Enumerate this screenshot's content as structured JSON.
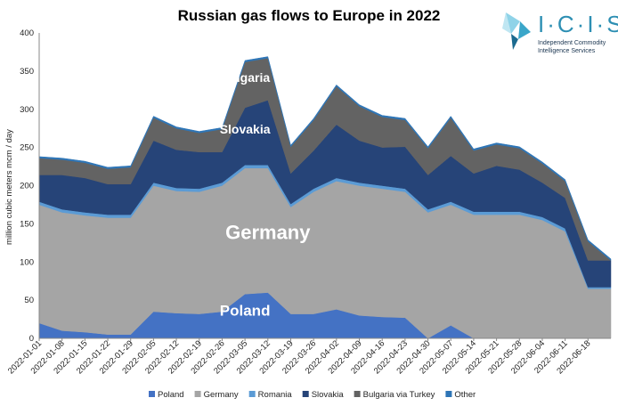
{
  "logo": {
    "name": "I·C·I·S",
    "line1": "Independent Commodity",
    "line2": "Intelligence Services"
  },
  "chart_data": {
    "type": "area",
    "stacked": true,
    "title": "Russian gas flows to Europe in 2022",
    "ylabel": "million cubic meters mcm / day",
    "xlabel": "",
    "ylim": [
      0,
      400
    ],
    "y_ticks": [
      0,
      50,
      100,
      150,
      200,
      250,
      300,
      350,
      400
    ],
    "x_tick_labels": [
      "2022-01-01",
      "2022-01-08",
      "2022-01-15",
      "2022-01-22",
      "2022-01-29",
      "2022-02-05",
      "2022-02-12",
      "2022-02-19",
      "2022-02-26",
      "2022-03-05",
      "2022-03-12",
      "2022-03-19",
      "2022-03-26",
      "2022-04-02",
      "2022-04-09",
      "2022-04-16",
      "2022-04-23",
      "2022-04-30",
      "2022-05-07",
      "2022-05-14",
      "2022-05-21",
      "2022-05-28",
      "2022-06-04",
      "2022-06-11",
      "2022-06-18"
    ],
    "x_start": "2022-01-01",
    "x_end": "2022-06-25",
    "grid": false,
    "legend_position": "bottom",
    "series_values_note": "values in mcm/day at weekly dates matching x_tick_labels plus end point",
    "dates": [
      "2022-01-01",
      "2022-01-08",
      "2022-01-15",
      "2022-01-22",
      "2022-01-29",
      "2022-02-05",
      "2022-02-12",
      "2022-02-19",
      "2022-02-26",
      "2022-03-05",
      "2022-03-12",
      "2022-03-19",
      "2022-03-26",
      "2022-04-02",
      "2022-04-09",
      "2022-04-16",
      "2022-04-23",
      "2022-04-30",
      "2022-05-07",
      "2022-05-14",
      "2022-05-21",
      "2022-05-28",
      "2022-06-04",
      "2022-06-11",
      "2022-06-18",
      "2022-06-25"
    ],
    "series": [
      {
        "name": "Poland",
        "color": "#4472c4",
        "values": [
          20,
          10,
          8,
          5,
          5,
          35,
          33,
          32,
          35,
          58,
          60,
          32,
          32,
          38,
          30,
          28,
          27,
          0,
          17,
          0,
          0,
          0,
          0,
          0,
          0,
          0
        ]
      },
      {
        "name": "Germany",
        "color": "#a5a5a5",
        "values": [
          155,
          155,
          153,
          153,
          153,
          165,
          160,
          160,
          165,
          165,
          163,
          140,
          160,
          168,
          170,
          168,
          165,
          165,
          158,
          162,
          162,
          162,
          155,
          140,
          65,
          65
        ]
      },
      {
        "name": "Romania",
        "color": "#5b9bd5",
        "values": [
          4,
          4,
          4,
          4,
          4,
          4,
          4,
          4,
          4,
          4,
          4,
          4,
          4,
          4,
          4,
          4,
          4,
          4,
          4,
          4,
          4,
          4,
          4,
          4,
          2,
          2
        ]
      },
      {
        "name": "Slovakia",
        "color": "#264478",
        "values": [
          35,
          45,
          45,
          40,
          40,
          55,
          50,
          48,
          40,
          75,
          85,
          40,
          50,
          70,
          55,
          50,
          55,
          45,
          60,
          50,
          60,
          55,
          45,
          40,
          35,
          35
        ]
      },
      {
        "name": "Bulgaria via Turkey",
        "color": "#636363",
        "values": [
          22,
          20,
          20,
          20,
          22,
          30,
          28,
          25,
          30,
          60,
          55,
          35,
          40,
          50,
          45,
          40,
          35,
          35,
          50,
          30,
          28,
          28,
          25,
          22,
          25,
          0
        ]
      },
      {
        "name": "Other",
        "color": "#2e75b6",
        "values": [
          2,
          2,
          2,
          2,
          2,
          2,
          2,
          2,
          2,
          2,
          2,
          2,
          2,
          2,
          2,
          2,
          2,
          2,
          2,
          2,
          2,
          2,
          2,
          2,
          2,
          2
        ]
      }
    ],
    "annotations": [
      {
        "text": "Bulgaria",
        "date": "2022-03-05",
        "y": 336
      },
      {
        "text": "Slovakia",
        "date": "2022-03-05",
        "y": 268
      },
      {
        "text": "Germany",
        "date": "2022-03-12",
        "y": 130
      },
      {
        "text": "Poland",
        "date": "2022-03-05",
        "y": 30
      }
    ]
  }
}
